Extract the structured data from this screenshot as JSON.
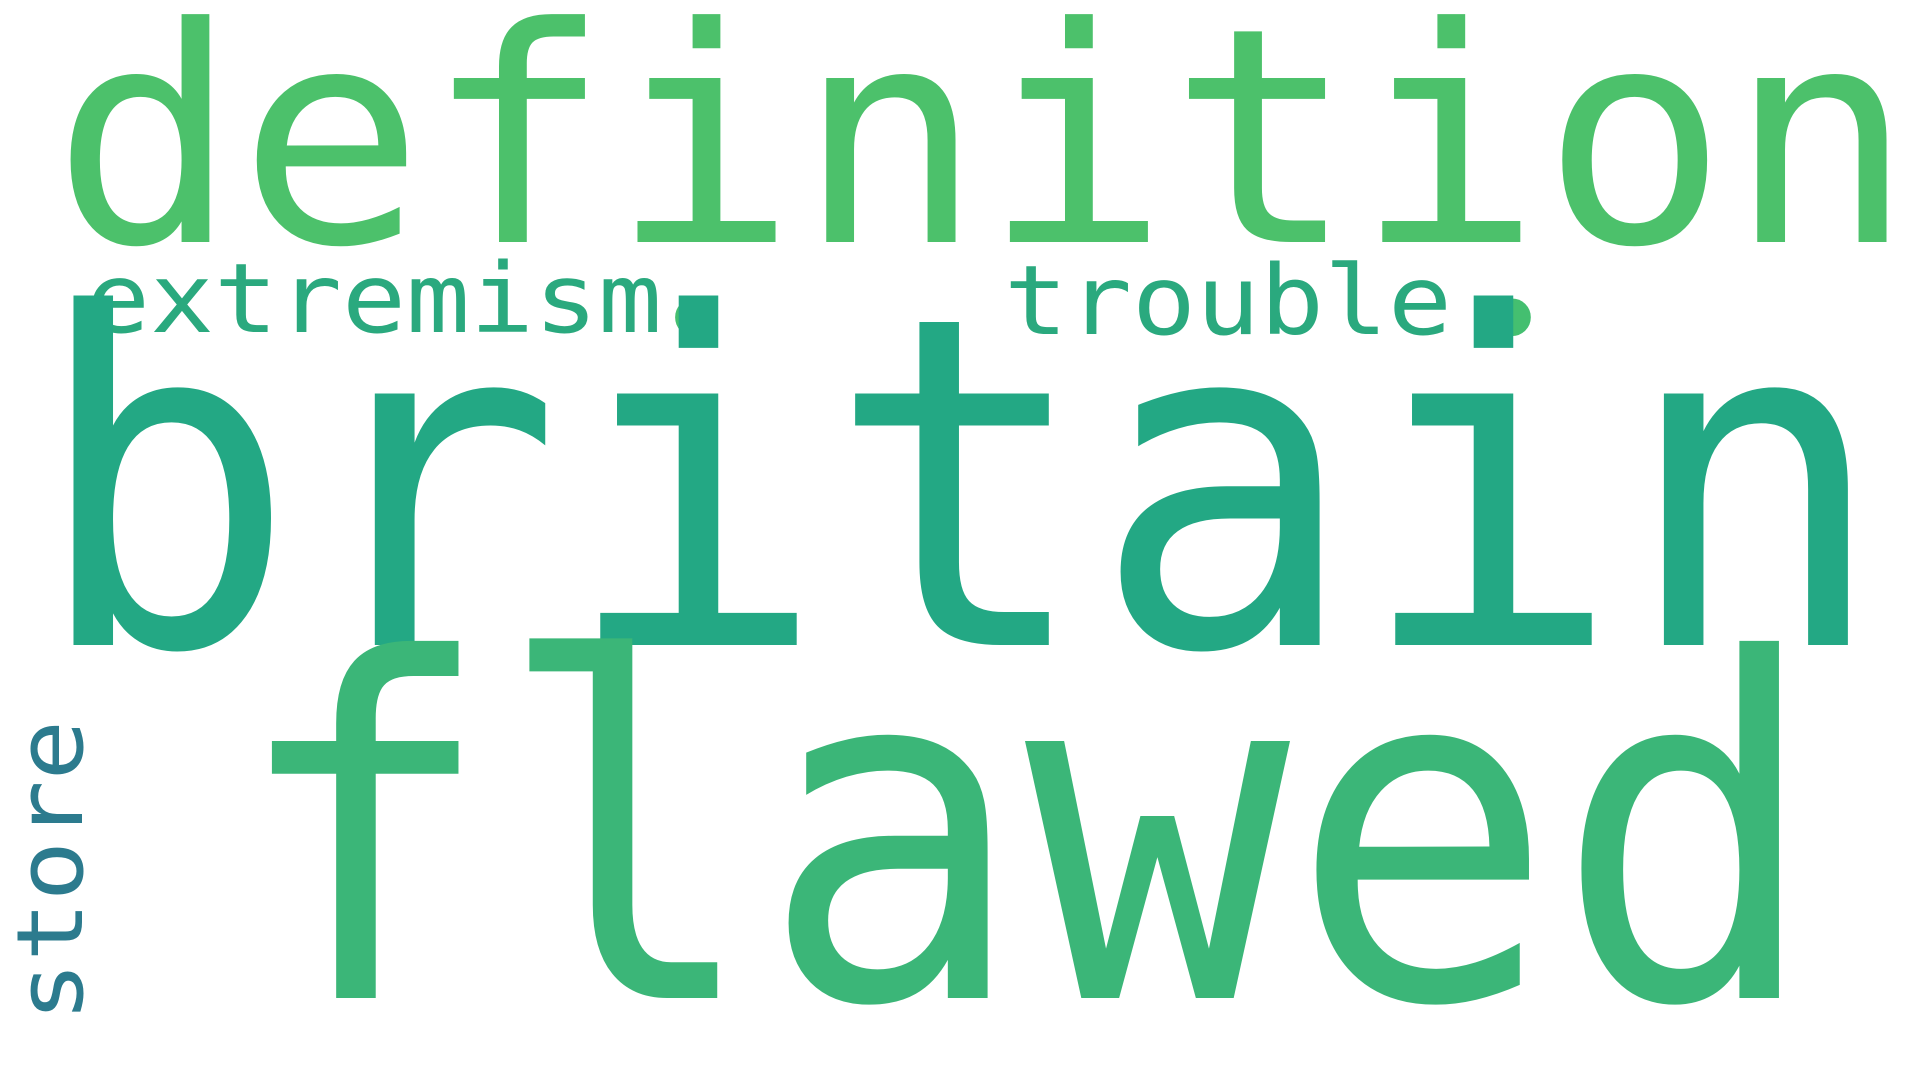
{
  "word_cloud": {
    "words": [
      {
        "id": "definition",
        "text": "definition",
        "color": "#4cc16b"
      },
      {
        "id": "extremism",
        "text": "extremism",
        "color": "#2aa97e"
      },
      {
        "id": "trouble",
        "text": "trouble",
        "color": "#2aa97e"
      },
      {
        "id": "dot-left",
        "text": "•",
        "color": "#44bf70"
      },
      {
        "id": "dot-right",
        "text": "•",
        "color": "#44bf70"
      },
      {
        "id": "britain",
        "text": "britain",
        "color": "#23a884"
      },
      {
        "id": "flawed",
        "text": "flawed",
        "color": "#3bb678"
      },
      {
        "id": "store",
        "text": "store",
        "color": "#2c7b8e"
      }
    ]
  }
}
